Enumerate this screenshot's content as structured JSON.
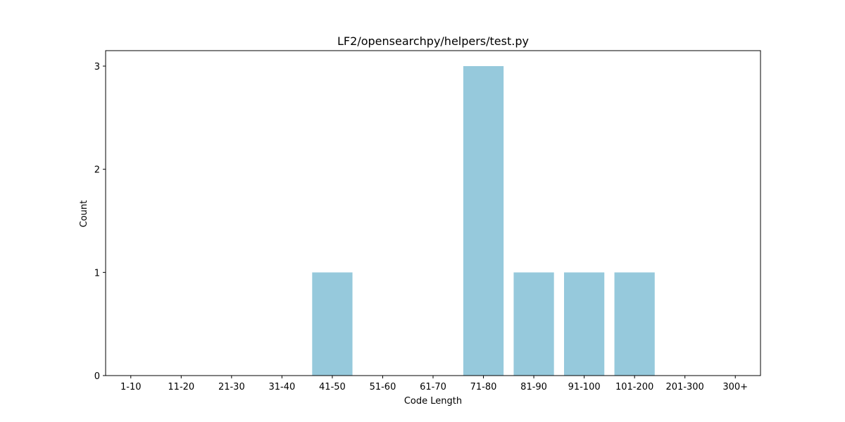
{
  "chart_data": {
    "type": "bar",
    "title": "LF2/opensearchpy/helpers/test.py",
    "xlabel": "Code Length",
    "ylabel": "Count",
    "categories": [
      "1-10",
      "11-20",
      "21-30",
      "31-40",
      "41-50",
      "51-60",
      "61-70",
      "71-80",
      "81-90",
      "91-100",
      "101-200",
      "201-300",
      "300+"
    ],
    "values": [
      0,
      0,
      0,
      0,
      1,
      0,
      0,
      3,
      1,
      1,
      1,
      0,
      0
    ],
    "yticks": [
      0,
      1,
      2,
      3
    ],
    "ylim": [
      0,
      3.15
    ],
    "bar_color": "#96c9dc",
    "grid": false,
    "legend": "none"
  }
}
